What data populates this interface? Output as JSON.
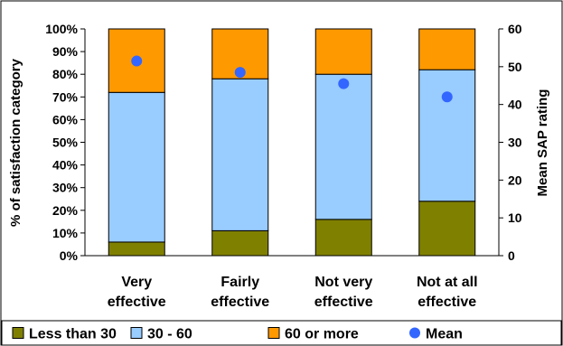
{
  "chart_data": {
    "type": "bar",
    "stacked": "percent",
    "categories": [
      [
        "Very",
        "effective"
      ],
      [
        "Fairly",
        "effective"
      ],
      [
        "Not very",
        "effective"
      ],
      [
        "Not at all",
        "effective"
      ]
    ],
    "series": [
      {
        "name": "Less than 30",
        "color": "#808000",
        "values": [
          6,
          11,
          16,
          24
        ]
      },
      {
        "name": "30 - 60",
        "color": "#99ccff",
        "values": [
          66,
          67,
          64,
          58
        ]
      },
      {
        "name": "60 or more",
        "color": "#ff9900",
        "values": [
          28,
          22,
          20,
          18
        ]
      }
    ],
    "mean": {
      "name": "Mean",
      "color": "#3366ff",
      "values": [
        51.5,
        48.5,
        45.5,
        42
      ]
    },
    "ylabel": "% of satisfaction category",
    "y2label": "Mean SAP rating",
    "ylim": [
      0,
      100
    ],
    "y2lim": [
      0,
      60
    ],
    "yticks": [
      "0%",
      "10%",
      "20%",
      "30%",
      "40%",
      "50%",
      "60%",
      "70%",
      "80%",
      "90%",
      "100%"
    ],
    "y2ticks": [
      "0",
      "10",
      "20",
      "30",
      "40",
      "50",
      "60"
    ],
    "grid": false,
    "legend_position": "bottom"
  }
}
